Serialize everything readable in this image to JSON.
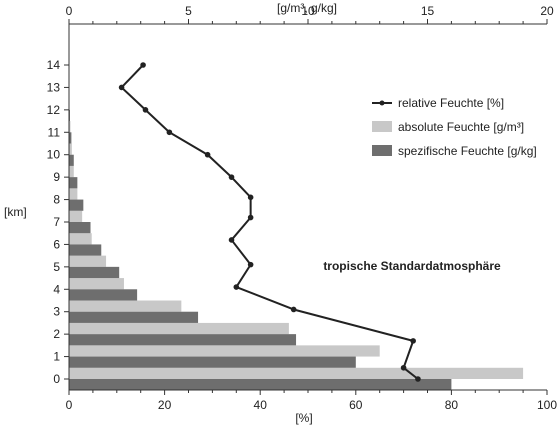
{
  "chart_data": {
    "type": "bar",
    "orientation": "horizontal",
    "title": "",
    "annotation": "tropische Standardatmosphäre",
    "ylabel": "[km]",
    "xlabel_bottom": "[%]",
    "xlabel_top": "[g/m³, g/kg]",
    "ylim": [
      0,
      14
    ],
    "xlim_bottom": [
      0,
      100
    ],
    "xlim_top": [
      0,
      20
    ],
    "yticks": [
      "0",
      "1",
      "2",
      "3",
      "4",
      "5",
      "6",
      "7",
      "8",
      "9",
      "10",
      "11",
      "12",
      "13",
      "14"
    ],
    "xticks_bottom": [
      "0",
      "20",
      "40",
      "60",
      "80",
      "100"
    ],
    "xticks_top": [
      "0",
      "5",
      "10",
      "15",
      "20"
    ],
    "legend": {
      "position": "top-right",
      "entries": [
        {
          "name": "relative Feuchte [%]",
          "kind": "line",
          "color": "#222222"
        },
        {
          "name": "absolute Feuchte [g/m³]",
          "kind": "bar",
          "color": "#c8c8c8"
        },
        {
          "name": "spezifische Feuchte [g/kg]",
          "kind": "bar",
          "color": "#6e6e6e"
        }
      ]
    },
    "series": [
      {
        "name": "absolute Feuchte [g/m³]",
        "type": "bar",
        "axis": "top",
        "color": "#c8c8c8",
        "heights": [
          0,
          1,
          2,
          3,
          4,
          5,
          6,
          7,
          8,
          9,
          10,
          11,
          12
        ],
        "values": [
          19.0,
          13.0,
          9.2,
          4.7,
          2.3,
          1.55,
          0.95,
          0.55,
          0.35,
          0.2,
          0.12,
          0.06,
          0.02
        ]
      },
      {
        "name": "spezifische Feuchte [g/kg]",
        "type": "bar",
        "axis": "top",
        "color": "#6e6e6e",
        "heights": [
          0,
          1,
          2,
          3,
          4,
          5,
          6,
          7,
          8,
          9,
          10,
          11,
          12
        ],
        "values": [
          16.0,
          12.0,
          9.5,
          5.4,
          2.85,
          2.1,
          1.35,
          0.9,
          0.6,
          0.35,
          0.2,
          0.1,
          0.04
        ]
      },
      {
        "name": "relative Feuchte [%]",
        "type": "line",
        "axis": "bottom",
        "color": "#222222",
        "points": [
          {
            "km": 0,
            "value": 73
          },
          {
            "km": 0.5,
            "value": 70
          },
          {
            "km": 1.7,
            "value": 72
          },
          {
            "km": 3.1,
            "value": 47
          },
          {
            "km": 4.1,
            "value": 35
          },
          {
            "km": 5.1,
            "value": 38
          },
          {
            "km": 6.2,
            "value": 34
          },
          {
            "km": 7.2,
            "value": 38
          },
          {
            "km": 8.1,
            "value": 38
          },
          {
            "km": 9.0,
            "value": 34
          },
          {
            "km": 10.0,
            "value": 29
          },
          {
            "km": 11.0,
            "value": 21
          },
          {
            "km": 12.0,
            "value": 16
          },
          {
            "km": 13.0,
            "value": 11
          },
          {
            "km": 14.0,
            "value": 15.5
          }
        ]
      }
    ]
  }
}
